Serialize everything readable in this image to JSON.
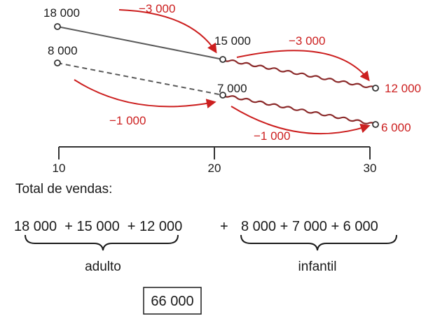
{
  "chart_data": {
    "type": "line",
    "x": [
      10,
      20,
      30
    ],
    "tick_labels": [
      "10",
      "20",
      "30"
    ],
    "series": [
      {
        "values": [
          18000,
          15000,
          12000
        ],
        "point_labels": [
          "18 000",
          "15 000",
          "12 000"
        ],
        "style": "solid"
      },
      {
        "values": [
          8000,
          7000,
          6000
        ],
        "point_labels": [
          "8 000",
          "7 000",
          "6 000"
        ],
        "style": "dashed"
      }
    ],
    "changes": [
      {
        "series": 0,
        "segment": 0,
        "label": "−3 000"
      },
      {
        "series": 0,
        "segment": 1,
        "label": "−3 000"
      },
      {
        "series": 1,
        "segment": 0,
        "label": "−1 000"
      },
      {
        "series": 1,
        "segment": 1,
        "label": "−1 000"
      }
    ],
    "colors": {
      "line": "#5a5a5a",
      "projection": "#8b2a2a",
      "annotation": "#cc1f1f",
      "axis": "#333333"
    }
  },
  "heading": "Total de vendas:",
  "sums": {
    "adult_expr": "18 000  + 15 000  + 12 000",
    "plus": "+",
    "child_expr": "8 000 + 7 000 + 6 000",
    "adult_label": "adulto",
    "child_label": "infantil"
  },
  "result": "66 000"
}
